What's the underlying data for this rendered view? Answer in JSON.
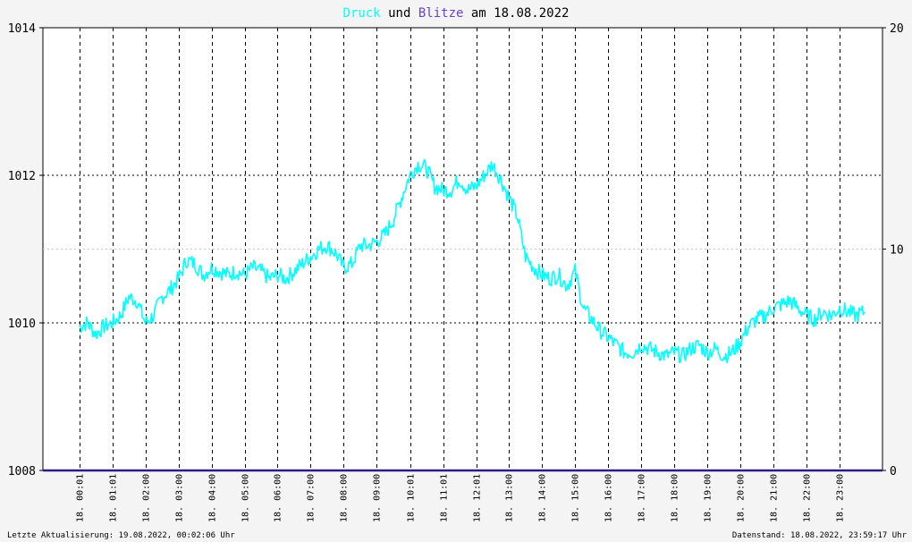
{
  "chart_data": {
    "type": "line",
    "title": {
      "part_druck": "Druck",
      "part_und": " und ",
      "part_blitze": "Blitze",
      "part_rest": " am 18.08.2022"
    },
    "colors": {
      "druck": "#00ffff",
      "blitze": "#6a3fcf",
      "text": "#000000",
      "background": "#ffffff",
      "baseline": "#2e1a80"
    },
    "left_axis": {
      "ylim": [
        1008,
        1014
      ],
      "ticks": [
        1008,
        1010,
        1012,
        1014
      ],
      "tick_labels": [
        "1008",
        "1010",
        "1012",
        "1014"
      ]
    },
    "right_axis": {
      "ylim": [
        0,
        20
      ],
      "ticks": [
        0,
        10,
        20
      ],
      "tick_labels": [
        "0",
        "10",
        "20"
      ]
    },
    "x_ticks": [
      {
        "label": "18. 00:01",
        "h": 0.017
      },
      {
        "label": "18. 01:01",
        "h": 1.017
      },
      {
        "label": "18. 02:00",
        "h": 2.0
      },
      {
        "label": "18. 03:00",
        "h": 3.0
      },
      {
        "label": "18. 04:00",
        "h": 4.0
      },
      {
        "label": "18. 05:00",
        "h": 5.0
      },
      {
        "label": "18. 06:00",
        "h": 6.0
      },
      {
        "label": "18. 07:00",
        "h": 7.0
      },
      {
        "label": "18. 08:00",
        "h": 8.0
      },
      {
        "label": "18. 09:00",
        "h": 9.0
      },
      {
        "label": "18. 10:01",
        "h": 10.017
      },
      {
        "label": "18. 11:01",
        "h": 11.017
      },
      {
        "label": "18. 12:01",
        "h": 12.017
      },
      {
        "label": "18. 13:00",
        "h": 13.0
      },
      {
        "label": "18. 14:00",
        "h": 14.0
      },
      {
        "label": "18. 15:00",
        "h": 15.0
      },
      {
        "label": "18. 16:00",
        "h": 16.0
      },
      {
        "label": "18. 17:00",
        "h": 17.0
      },
      {
        "label": "18. 18:00",
        "h": 18.0
      },
      {
        "label": "18. 19:00",
        "h": 19.0
      },
      {
        "label": "18. 20:00",
        "h": 20.0
      },
      {
        "label": "18. 21:00",
        "h": 21.0
      },
      {
        "label": "18. 22:00",
        "h": 22.0
      },
      {
        "label": "18. 23:00",
        "h": 23.0
      }
    ],
    "xlim_hours": [
      -1.1,
      24.3
    ],
    "minor_gridline_values": [
      1011
    ],
    "grid": true,
    "druck_series": {
      "x_hours": [
        0.0,
        0.25,
        0.5,
        0.75,
        1.0,
        1.25,
        1.5,
        1.75,
        2.0,
        2.25,
        2.5,
        2.75,
        3.0,
        3.25,
        3.5,
        3.75,
        4.0,
        4.25,
        4.5,
        4.75,
        5.0,
        5.25,
        5.5,
        5.75,
        6.0,
        6.25,
        6.5,
        6.75,
        7.0,
        7.25,
        7.5,
        7.75,
        8.0,
        8.25,
        8.5,
        8.75,
        9.0,
        9.25,
        9.5,
        9.75,
        10.0,
        10.25,
        10.5,
        10.75,
        11.0,
        11.25,
        11.5,
        11.75,
        12.0,
        12.25,
        12.5,
        12.75,
        13.0,
        13.25,
        13.5,
        13.75,
        14.0,
        14.25,
        14.5,
        14.75,
        15.0,
        15.25,
        15.5,
        15.75,
        16.0,
        16.25,
        16.5,
        16.75,
        17.0,
        17.25,
        17.5,
        17.75,
        18.0,
        18.25,
        18.5,
        18.75,
        19.0,
        19.25,
        19.5,
        19.75,
        20.0,
        20.25,
        20.5,
        20.75,
        21.0,
        21.25,
        21.5,
        21.75,
        22.0,
        22.25,
        22.5,
        22.75,
        23.0,
        23.25,
        23.5,
        23.75
      ],
      "values": [
        1009.95,
        1010.0,
        1009.85,
        1009.95,
        1010.0,
        1010.1,
        1010.35,
        1010.3,
        1010.0,
        1010.1,
        1010.35,
        1010.45,
        1010.6,
        1010.85,
        1010.8,
        1010.65,
        1010.75,
        1010.7,
        1010.65,
        1010.7,
        1010.65,
        1010.75,
        1010.7,
        1010.6,
        1010.65,
        1010.6,
        1010.7,
        1010.8,
        1010.9,
        1011.0,
        1011.05,
        1010.95,
        1010.75,
        1010.8,
        1011.05,
        1011.05,
        1011.1,
        1011.2,
        1011.4,
        1011.7,
        1012.0,
        1012.15,
        1012.1,
        1011.85,
        1011.8,
        1011.8,
        1011.95,
        1011.8,
        1011.85,
        1012.0,
        1012.15,
        1011.95,
        1011.7,
        1011.45,
        1010.9,
        1010.75,
        1010.65,
        1010.6,
        1010.65,
        1010.5,
        1010.7,
        1010.2,
        1010.05,
        1009.9,
        1009.8,
        1009.7,
        1009.6,
        1009.6,
        1009.7,
        1009.65,
        1009.6,
        1009.55,
        1009.6,
        1009.55,
        1009.65,
        1009.7,
        1009.6,
        1009.65,
        1009.55,
        1009.6,
        1009.75,
        1009.95,
        1010.05,
        1010.1,
        1010.2,
        1010.25,
        1010.3,
        1010.2,
        1010.1,
        1010.05,
        1010.15,
        1010.1,
        1010.2,
        1010.15,
        1010.1,
        1010.15
      ]
    },
    "blitze_series": {
      "x_hours": [
        -1.1,
        24.3
      ],
      "values": [
        0,
        0
      ]
    }
  },
  "footer": {
    "left": "Letzte Aktualisierung: 19.08.2022, 00:02:06 Uhr",
    "right": "Datenstand: 18.08.2022, 23:59:17 Uhr"
  }
}
